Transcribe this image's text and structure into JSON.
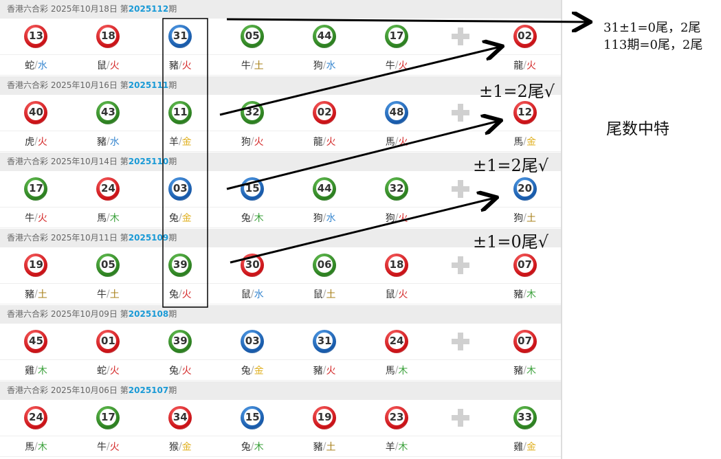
{
  "lottery_name": "香港六合彩",
  "colors": {
    "red": "#d9262a",
    "blue": "#1f6fc1",
    "green": "#3a9a2a",
    "水": "#3a88d0",
    "火": "#d42a2a",
    "土": "#a8801a",
    "金": "#e0b020",
    "木": "#3aa03a"
  },
  "plus_icon": "plus-icon",
  "draws": [
    {
      "date": "2025年10月18日",
      "prefix": "第",
      "issue": "2025112",
      "suffix": "期",
      "balls": [
        [
          "13",
          "red",
          "蛇",
          "水"
        ],
        [
          "18",
          "red",
          "鼠",
          "火"
        ],
        [
          "31",
          "blue",
          "豬",
          "火"
        ],
        [
          "05",
          "green",
          "牛",
          "土"
        ],
        [
          "44",
          "green",
          "狗",
          "水"
        ],
        [
          "17",
          "green",
          "牛",
          "火"
        ],
        [
          "02",
          "red",
          "龍",
          "火"
        ]
      ]
    },
    {
      "date": "2025年10月16日",
      "prefix": "第",
      "issue": "2025111",
      "suffix": "期",
      "balls": [
        [
          "40",
          "red",
          "虎",
          "火"
        ],
        [
          "43",
          "green",
          "豬",
          "水"
        ],
        [
          "11",
          "green",
          "羊",
          "金"
        ],
        [
          "32",
          "green",
          "狗",
          "火"
        ],
        [
          "02",
          "red",
          "龍",
          "火"
        ],
        [
          "48",
          "blue",
          "馬",
          "火"
        ],
        [
          "12",
          "red",
          "馬",
          "金"
        ]
      ]
    },
    {
      "date": "2025年10月14日",
      "prefix": "第",
      "issue": "2025110",
      "suffix": "期",
      "balls": [
        [
          "17",
          "green",
          "牛",
          "火"
        ],
        [
          "24",
          "red",
          "馬",
          "木"
        ],
        [
          "03",
          "blue",
          "兔",
          "金"
        ],
        [
          "15",
          "blue",
          "兔",
          "木"
        ],
        [
          "44",
          "green",
          "狗",
          "水"
        ],
        [
          "32",
          "green",
          "狗",
          "火"
        ],
        [
          "20",
          "blue",
          "狗",
          "土"
        ]
      ]
    },
    {
      "date": "2025年10月11日",
      "prefix": "第",
      "issue": "2025109",
      "suffix": "期",
      "balls": [
        [
          "19",
          "red",
          "豬",
          "土"
        ],
        [
          "05",
          "green",
          "牛",
          "土"
        ],
        [
          "39",
          "green",
          "兔",
          "火"
        ],
        [
          "30",
          "red",
          "鼠",
          "水"
        ],
        [
          "06",
          "green",
          "鼠",
          "土"
        ],
        [
          "18",
          "red",
          "鼠",
          "火"
        ],
        [
          "07",
          "red",
          "豬",
          "木"
        ]
      ]
    },
    {
      "date": "2025年10月09日",
      "prefix": "第",
      "issue": "2025108",
      "suffix": "期",
      "balls": [
        [
          "45",
          "red",
          "雞",
          "木"
        ],
        [
          "01",
          "red",
          "蛇",
          "火"
        ],
        [
          "39",
          "green",
          "兔",
          "火"
        ],
        [
          "03",
          "blue",
          "兔",
          "金"
        ],
        [
          "31",
          "blue",
          "豬",
          "火"
        ],
        [
          "24",
          "red",
          "馬",
          "木"
        ],
        [
          "07",
          "red",
          "豬",
          "木"
        ]
      ]
    },
    {
      "date": "2025年10月06日",
      "prefix": "第",
      "issue": "2025107",
      "suffix": "期",
      "balls": [
        [
          "24",
          "red",
          "馬",
          "木"
        ],
        [
          "17",
          "green",
          "牛",
          "火"
        ],
        [
          "34",
          "red",
          "猴",
          "金"
        ],
        [
          "15",
          "blue",
          "兔",
          "木"
        ],
        [
          "19",
          "red",
          "豬",
          "土"
        ],
        [
          "23",
          "red",
          "羊",
          "木"
        ],
        [
          "33",
          "green",
          "雞",
          "金"
        ]
      ]
    }
  ],
  "annotations": {
    "line1": "31±1=0尾，2尾",
    "line2": "113期=0尾，2尾",
    "check1": "±1=2尾√",
    "check2": "±1=2尾√",
    "check3": "±1=0尾√",
    "title": "尾数中特"
  }
}
